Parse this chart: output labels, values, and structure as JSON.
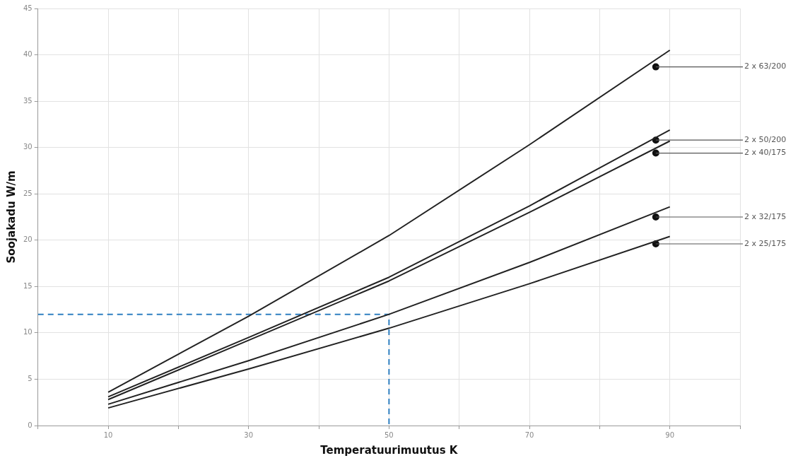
{
  "chart_data": {
    "type": "line",
    "xlabel": "Temperatuurimuutus K",
    "ylabel": "Soojakadu W/m",
    "xlim": [
      0,
      100
    ],
    "xticks": [
      {
        "value": 0,
        "label": null
      },
      10,
      {
        "value": 20,
        "label": null
      },
      30,
      {
        "value": 40,
        "label": null
      },
      50,
      {
        "value": 60,
        "label": null
      },
      70,
      {
        "value": 80,
        "label": null
      },
      90,
      {
        "value": 100,
        "label": null
      }
    ],
    "ylim": [
      0,
      45
    ],
    "yticks": [
      0,
      5,
      10,
      15,
      20,
      25,
      30,
      35,
      40,
      45
    ],
    "grid": true,
    "legend": false,
    "marker": "none",
    "line_style": "solid",
    "series": [
      {
        "name": "2 x 63/200",
        "color": "#222222",
        "x": [
          10,
          30,
          50,
          70,
          90
        ],
        "values": [
          3.6,
          11.8,
          20.5,
          30.3,
          40.5
        ]
      },
      {
        "name": "2 x 50/200",
        "color": "#222222",
        "x": [
          10,
          30,
          50,
          70,
          90
        ],
        "values": [
          3.1,
          9.5,
          16,
          23.7,
          31.9
        ]
      },
      {
        "name": "2 x 40/175",
        "color": "#222222",
        "x": [
          10,
          30,
          50,
          70,
          90
        ],
        "values": [
          2.8,
          9.2,
          15.6,
          23,
          30.7
        ]
      },
      {
        "name": "2 x 32/175",
        "color": "#222222",
        "x": [
          10,
          30,
          50,
          70,
          90
        ],
        "values": [
          2.3,
          7,
          12,
          17.6,
          23.6
        ]
      },
      {
        "name": "2 x 25/175",
        "color": "#222222",
        "x": [
          10,
          30,
          50,
          70,
          90
        ],
        "values": [
          1.9,
          6.1,
          10.5,
          15.3,
          20.4
        ]
      },
      {
        "type": "scatter",
        "marker": "circle",
        "color": "#111111",
        "x": [
          88,
          88,
          88,
          88,
          88
        ],
        "values": [
          38.7,
          30.8,
          29.4,
          22.5,
          19.6
        ]
      },
      {
        "color": "#2f7fc1",
        "line_style": "dashed",
        "x": [
          0,
          50,
          50
        ],
        "values": [
          12,
          12,
          0
        ]
      }
    ]
  }
}
